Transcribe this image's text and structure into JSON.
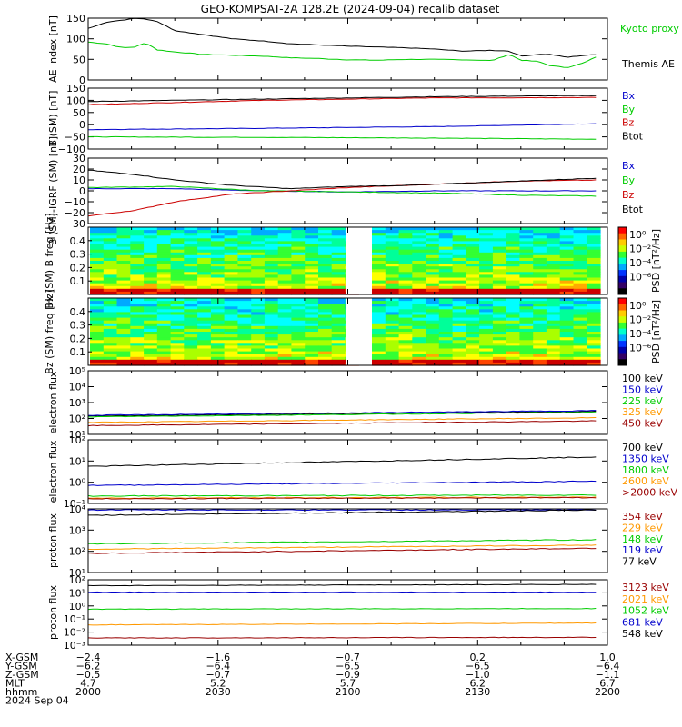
{
  "title": "GEO-KOMPSAT-2A 128.2E (2024-09-04) recalib dataset",
  "colors": {
    "black": "#000000",
    "blue": "#0000cc",
    "green": "#00cc00",
    "red": "#cc0000",
    "orange": "#ff9900",
    "darkred": "#990000",
    "lime": "#33dd33"
  },
  "chart_data": [
    {
      "type": "line",
      "id": "ae",
      "ylabel": "AE index [nT]",
      "ylim": [
        0,
        150
      ],
      "yticks": [
        "0",
        "50",
        "100",
        "150"
      ],
      "yscale": "linear",
      "x_minutes": [
        0,
        90
      ],
      "series": [
        {
          "name": "Kyoto proxy AE",
          "color": "#00cc00",
          "values": [
            [
              0,
              92
            ],
            [
              3,
              88
            ],
            [
              6,
              78
            ],
            [
              8,
              80
            ],
            [
              10,
              90
            ],
            [
              12,
              73
            ],
            [
              15,
              68
            ],
            [
              20,
              62
            ],
            [
              25,
              60
            ],
            [
              30,
              58
            ],
            [
              35,
              54
            ],
            [
              40,
              52
            ],
            [
              45,
              49
            ],
            [
              50,
              48
            ],
            [
              55,
              50
            ],
            [
              60,
              50
            ],
            [
              65,
              49
            ],
            [
              70,
              47
            ],
            [
              73,
              62
            ],
            [
              75,
              48
            ],
            [
              78,
              45
            ],
            [
              80,
              35
            ],
            [
              83,
              30
            ],
            [
              86,
              42
            ],
            [
              90,
              70
            ]
          ]
        },
        {
          "name": "Themis AE",
          "color": "#000000",
          "values": [
            [
              0,
              125
            ],
            [
              3,
              140
            ],
            [
              6,
              145
            ],
            [
              8,
              150
            ],
            [
              10,
              148
            ],
            [
              12,
              142
            ],
            [
              15,
              120
            ],
            [
              20,
              110
            ],
            [
              25,
              100
            ],
            [
              30,
              95
            ],
            [
              35,
              88
            ],
            [
              40,
              85
            ],
            [
              45,
              82
            ],
            [
              50,
              80
            ],
            [
              55,
              78
            ],
            [
              60,
              75
            ],
            [
              65,
              70
            ],
            [
              70,
              72
            ],
            [
              73,
              70
            ],
            [
              75,
              58
            ],
            [
              78,
              62
            ],
            [
              80,
              62
            ],
            [
              83,
              55
            ],
            [
              86,
              60
            ],
            [
              90,
              62
            ]
          ]
        }
      ]
    },
    {
      "type": "line",
      "id": "bsm",
      "ylabel": "B (SM) [nT]",
      "ylim": [
        -100,
        150
      ],
      "yticks": [
        "−100",
        "−50",
        "0",
        "50",
        "100",
        "150"
      ],
      "yscale": "linear",
      "x_minutes": [
        0,
        90
      ],
      "series": [
        {
          "name": "Bx",
          "color": "#0000cc",
          "values": [
            [
              0,
              -20
            ],
            [
              30,
              -15
            ],
            [
              60,
              -8
            ],
            [
              90,
              5
            ]
          ]
        },
        {
          "name": "By",
          "color": "#00cc00",
          "values": [
            [
              0,
              -50
            ],
            [
              30,
              -52
            ],
            [
              60,
              -55
            ],
            [
              90,
              -60
            ]
          ]
        },
        {
          "name": "Bz",
          "color": "#cc0000",
          "values": [
            [
              0,
              82
            ],
            [
              30,
              100
            ],
            [
              60,
              110
            ],
            [
              90,
              112
            ]
          ]
        },
        {
          "name": "Btot",
          "color": "#000000",
          "values": [
            [
              0,
              95
            ],
            [
              30,
              105
            ],
            [
              60,
              115
            ],
            [
              90,
              120
            ]
          ]
        }
      ]
    },
    {
      "type": "line",
      "id": "bigrf",
      "ylabel": "B (SM)-IGRF (SM) [nT]",
      "ylim": [
        -30,
        30
      ],
      "yticks": [
        "−30",
        "−20",
        "−10",
        "0",
        "10",
        "20",
        "30"
      ],
      "yscale": "linear",
      "x_minutes": [
        0,
        90
      ],
      "series": [
        {
          "name": "Bx",
          "color": "#0000cc",
          "values": [
            [
              0,
              2
            ],
            [
              15,
              2
            ],
            [
              30,
              0
            ],
            [
              45,
              -1
            ],
            [
              60,
              0
            ],
            [
              75,
              0
            ],
            [
              90,
              0
            ]
          ]
        },
        {
          "name": "By",
          "color": "#00cc00",
          "values": [
            [
              0,
              3
            ],
            [
              15,
              4
            ],
            [
              30,
              0
            ],
            [
              45,
              -1
            ],
            [
              60,
              -2
            ],
            [
              75,
              -4
            ],
            [
              90,
              -5
            ]
          ]
        },
        {
          "name": "Bz",
          "color": "#cc0000",
          "values": [
            [
              0,
              -23
            ],
            [
              8,
              -18
            ],
            [
              15,
              -10
            ],
            [
              25,
              -3
            ],
            [
              35,
              0
            ],
            [
              45,
              3
            ],
            [
              55,
              5
            ],
            [
              65,
              7
            ],
            [
              75,
              9
            ],
            [
              90,
              10
            ]
          ]
        },
        {
          "name": "Btot",
          "color": "#000000",
          "values": [
            [
              0,
              19
            ],
            [
              8,
              15
            ],
            [
              15,
              10
            ],
            [
              25,
              5
            ],
            [
              35,
              2
            ],
            [
              45,
              4
            ],
            [
              55,
              5
            ],
            [
              65,
              7
            ],
            [
              75,
              9
            ],
            [
              90,
              12
            ]
          ]
        }
      ]
    },
    {
      "type": "heatmap",
      "id": "bx-spec",
      "ylabel": "Bx (SM) B freq [Hz]",
      "yticks": [
        "0.1",
        "0.2",
        "0.3",
        "0.4"
      ],
      "colorbar_label": "PSD [nT²/Hz]",
      "colorbar_ticks": [
        "10⁰",
        "10⁻²",
        "10⁻⁴",
        "10⁻⁶"
      ]
    },
    {
      "type": "heatmap",
      "id": "bz-spec",
      "ylabel": "Bz (SM) freq [Hz]",
      "yticks": [
        "0.1",
        "0.2",
        "0.3",
        "0.4"
      ],
      "colorbar_label": "PSD [nT²/Hz]",
      "colorbar_ticks": [
        "10⁰",
        "10⁻²",
        "10⁻⁴",
        "10⁻⁶"
      ]
    },
    {
      "type": "line",
      "id": "e-lo",
      "ylabel": "electron flux",
      "yscale": "log",
      "ylim_exp": [
        1,
        5
      ],
      "yticks": [
        "10¹",
        "10²",
        "10³",
        "10⁴",
        "10⁵"
      ],
      "series": [
        {
          "name": "100 keV",
          "color": "#000000",
          "values": [
            [
              0,
              2.15
            ],
            [
              90,
              2.45
            ]
          ]
        },
        {
          "name": "150 keV",
          "color": "#0000cc",
          "values": [
            [
              0,
              2.2
            ],
            [
              90,
              2.5
            ]
          ]
        },
        {
          "name": "225 keV",
          "color": "#00cc00",
          "values": [
            [
              0,
              2.1
            ],
            [
              90,
              2.4
            ]
          ]
        },
        {
          "name": "325 keV",
          "color": "#ff9900",
          "values": [
            [
              0,
              1.75
            ],
            [
              90,
              2.05
            ]
          ]
        },
        {
          "name": "450 keV",
          "color": "#990000",
          "values": [
            [
              0,
              1.55
            ],
            [
              90,
              1.85
            ]
          ]
        }
      ]
    },
    {
      "type": "line",
      "id": "e-hi",
      "ylabel": "electron flux",
      "yscale": "log",
      "ylim_exp": [
        -1,
        2
      ],
      "yticks": [
        "10⁻¹",
        "10⁰",
        "10¹",
        "10²"
      ],
      "series": [
        {
          "name": "700 keV",
          "color": "#000000",
          "values": [
            [
              0,
              0.75
            ],
            [
              90,
              1.2
            ]
          ]
        },
        {
          "name": "1350 keV",
          "color": "#0000cc",
          "values": [
            [
              0,
              -0.15
            ],
            [
              90,
              0.05
            ]
          ]
        },
        {
          "name": "1800 keV",
          "color": "#00cc00",
          "values": [
            [
              0,
              -0.65
            ],
            [
              90,
              -0.6
            ]
          ]
        },
        {
          "name": "2600 keV",
          "color": "#ff9900",
          "values": [
            [
              0,
              -0.75
            ],
            [
              90,
              -0.7
            ]
          ]
        },
        {
          "name": ">2000 keV",
          "color": "#990000",
          "values": [
            [
              0,
              -0.78
            ],
            [
              90,
              -0.72
            ]
          ]
        }
      ]
    },
    {
      "type": "line",
      "id": "p-lo",
      "ylabel": "proton flux",
      "yscale": "log",
      "ylim_exp": [
        1,
        4
      ],
      "yticks": [
        "10¹",
        "10²",
        "10³",
        "10⁴"
      ],
      "series": [
        {
          "name": "354 keV",
          "color": "#990000",
          "values": [
            [
              0,
              1.9
            ],
            [
              90,
              2.15
            ]
          ]
        },
        {
          "name": "229 keV",
          "color": "#ff9900",
          "values": [
            [
              0,
              2.1
            ],
            [
              90,
              2.3
            ]
          ]
        },
        {
          "name": "148 keV",
          "color": "#00cc00",
          "values": [
            [
              0,
              2.35
            ],
            [
              90,
              2.55
            ]
          ]
        },
        {
          "name": "119 keV",
          "color": "#0000cc",
          "values": [
            [
              0,
              3.95
            ],
            [
              90,
              3.95
            ]
          ]
        },
        {
          "name": "77 keV",
          "color": "#000000",
          "values": [
            [
              0,
              3.7
            ],
            [
              90,
              3.95
            ]
          ]
        }
      ]
    },
    {
      "type": "line",
      "id": "p-hi",
      "ylabel": "proton flux",
      "yscale": "log",
      "ylim_exp": [
        -3,
        2
      ],
      "yticks": [
        "10⁻³",
        "10⁻²",
        "10⁻¹",
        "10⁰",
        "10¹",
        "10²"
      ],
      "series": [
        {
          "name": "3123 keV",
          "color": "#990000",
          "values": [
            [
              0,
              -2.45
            ],
            [
              90,
              -2.4
            ]
          ]
        },
        {
          "name": "2021 keV",
          "color": "#ff9900",
          "values": [
            [
              0,
              -1.45
            ],
            [
              90,
              -1.3
            ]
          ]
        },
        {
          "name": "1052 keV",
          "color": "#00cc00",
          "values": [
            [
              0,
              -0.25
            ],
            [
              90,
              -0.2
            ]
          ]
        },
        {
          "name": "681 keV",
          "color": "#0000cc",
          "values": [
            [
              0,
              1.05
            ],
            [
              90,
              1.05
            ]
          ]
        },
        {
          "name": "548 keV",
          "color": "#000000",
          "values": [
            [
              0,
              1.55
            ],
            [
              90,
              1.65
            ]
          ]
        }
      ]
    }
  ],
  "ephemeris": {
    "row_labels": [
      "X-GSM",
      "Y-GSM",
      "Z-GSM",
      "MLT",
      "hhmm",
      "2024 Sep 04"
    ],
    "columns": [
      [
        "−2.4",
        "−6.2",
        "−0.5",
        "4.7",
        "2000"
      ],
      [
        "−1.6",
        "−6.4",
        "−0.7",
        "5.2",
        "2030"
      ],
      [
        "−0.7",
        "−6.5",
        "−0.9",
        "5.7",
        "2100"
      ],
      [
        "0.2",
        "−6.5",
        "−1.0",
        "6.2",
        "2130"
      ],
      [
        "1.0",
        "−6.4",
        "−1.1",
        "6.7",
        "2200"
      ]
    ]
  }
}
